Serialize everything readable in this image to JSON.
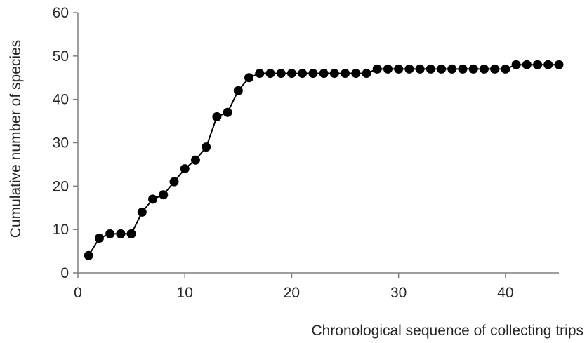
{
  "chart_data": {
    "type": "line",
    "title": "",
    "xlabel": "Chronological sequence of collecting trips",
    "ylabel": "Cumulative number of species",
    "xlim": [
      0,
      45
    ],
    "ylim": [
      0,
      60
    ],
    "xticks": [
      0,
      10,
      20,
      30,
      40
    ],
    "yticks": [
      0,
      10,
      20,
      30,
      40,
      50,
      60
    ],
    "grid": false,
    "legend": "none",
    "marker": "circle",
    "colors": {
      "line": "#000000",
      "marker": "#000000",
      "axis": "#7f7f7f",
      "text": "#262626"
    },
    "series": [
      {
        "x": [
          1,
          2,
          3,
          4,
          5,
          6,
          7,
          8,
          9,
          10,
          11,
          12,
          13,
          14,
          15,
          16,
          17,
          18,
          19,
          20,
          21,
          22,
          23,
          24,
          25,
          26,
          27,
          28,
          29,
          30,
          31,
          32,
          33,
          34,
          35,
          36,
          37,
          38,
          39,
          40,
          41,
          42,
          43,
          44,
          45
        ],
        "values": [
          4,
          8,
          9,
          9,
          9,
          14,
          17,
          18,
          21,
          24,
          26,
          29,
          36,
          37,
          42,
          45,
          46,
          46,
          46,
          46,
          46,
          46,
          46,
          46,
          46,
          46,
          46,
          47,
          47,
          47,
          47,
          47,
          47,
          47,
          47,
          47,
          47,
          47,
          47,
          47,
          48,
          48,
          48,
          48,
          48
        ]
      }
    ]
  }
}
